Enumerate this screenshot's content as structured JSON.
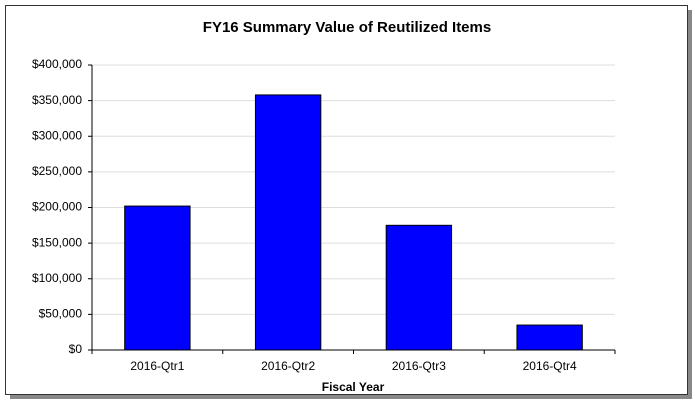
{
  "chart_data": {
    "type": "bar",
    "title": "FY16 Summary Value of Reutilized Items",
    "x_label": "Fiscal Year",
    "categories": [
      "2016-Qtr1",
      "2016-Qtr2",
      "2016-Qtr3",
      "2016-Qtr4"
    ],
    "values": [
      202000,
      358000,
      175000,
      35000
    ],
    "color": "#0000ff",
    "ylim": [
      0,
      400000
    ],
    "yticks": [
      {
        "value": 0,
        "label": "$0"
      },
      {
        "value": 50000,
        "label": "$50,000"
      },
      {
        "value": 100000,
        "label": "$100,000"
      },
      {
        "value": 150000,
        "label": "$150,000"
      },
      {
        "value": 200000,
        "label": "$200,000"
      },
      {
        "value": 250000,
        "label": "$250,000"
      },
      {
        "value": 300000,
        "label": "$300,000"
      },
      {
        "value": 350000,
        "label": "$350,000"
      },
      {
        "value": 400000,
        "label": "$400,000"
      }
    ],
    "grid": true
  }
}
